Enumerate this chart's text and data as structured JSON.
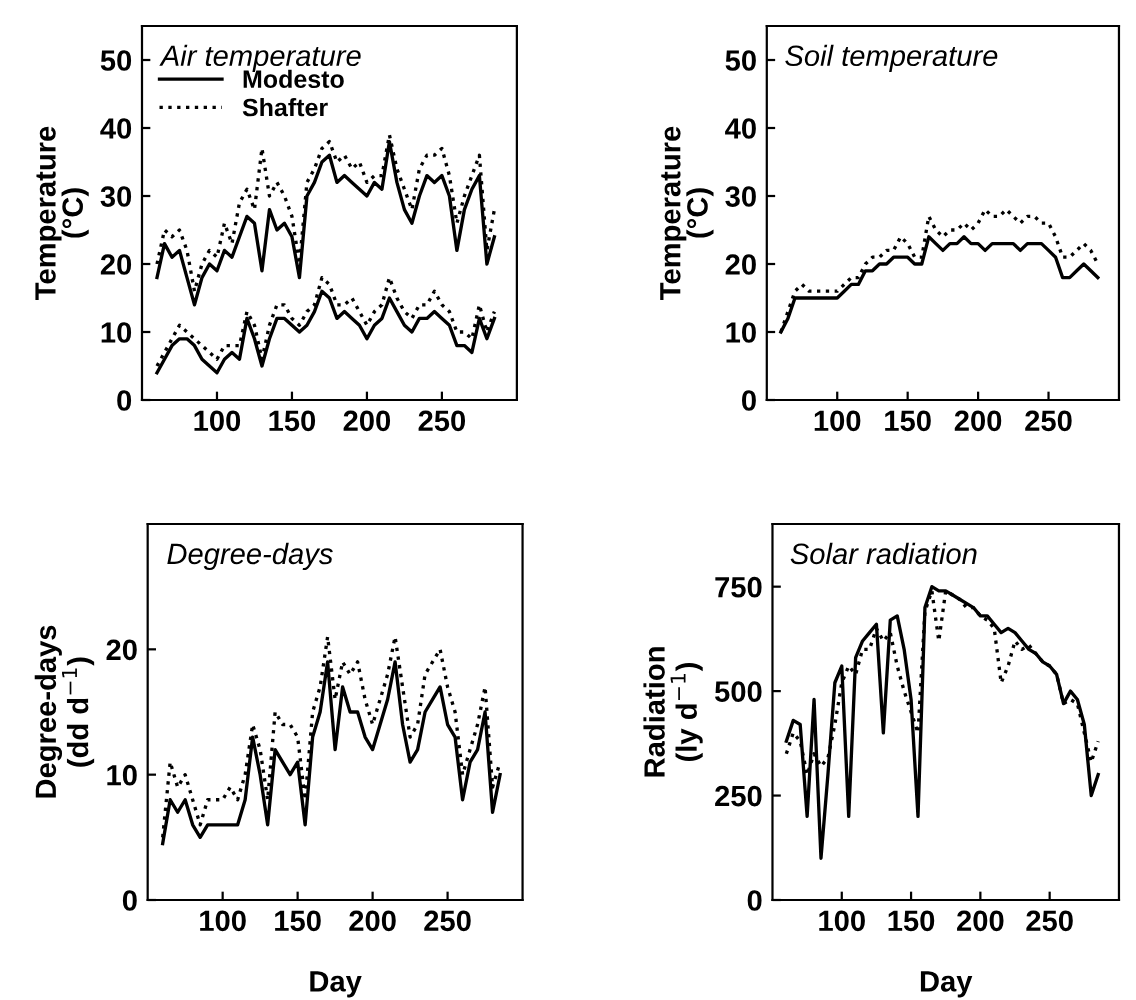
{
  "chart_data": [
    {
      "type": "line",
      "title": "Air temperature",
      "ylabel": "Temperature\n(°C)",
      "xlim": [
        50,
        300
      ],
      "xticks": [
        100,
        150,
        200,
        250
      ],
      "ylim": [
        0,
        55
      ],
      "yticks": [
        0,
        10,
        20,
        30,
        40,
        50
      ],
      "legend": "top left",
      "grid": false,
      "x": [
        60,
        65,
        70,
        75,
        80,
        85,
        90,
        95,
        100,
        105,
        110,
        115,
        120,
        125,
        130,
        135,
        140,
        145,
        150,
        155,
        160,
        165,
        170,
        175,
        180,
        185,
        190,
        195,
        200,
        205,
        210,
        215,
        220,
        225,
        230,
        235,
        240,
        245,
        250,
        255,
        260,
        265,
        270,
        275,
        280,
        285
      ],
      "series": [
        {
          "name": "Modesto",
          "color": "#000000",
          "line_style": "solid",
          "values": [
            18,
            23,
            21,
            22,
            18,
            14,
            18,
            20,
            19,
            22,
            21,
            24,
            27,
            26,
            19,
            28,
            25,
            26,
            24,
            18,
            30,
            32,
            35,
            36,
            32,
            33,
            32,
            31,
            30,
            32,
            31,
            38,
            32,
            28,
            26,
            30,
            33,
            32,
            33,
            30,
            22,
            28,
            31,
            33,
            20,
            24
          ]
        },
        {
          "name": "Shafter",
          "color": "#000000",
          "line_style": "dotted",
          "values": [
            20,
            25,
            24,
            25,
            22,
            16,
            20,
            22,
            21,
            26,
            23,
            29,
            31,
            28,
            37,
            30,
            32,
            30,
            27,
            20,
            32,
            34,
            37,
            38,
            35,
            36,
            34,
            35,
            32,
            33,
            33,
            39,
            34,
            31,
            28,
            34,
            36,
            36,
            37,
            33,
            26,
            30,
            33,
            36,
            22,
            28
          ]
        },
        {
          "color": "#000000",
          "line_style": "solid",
          "values": [
            4,
            6,
            8,
            9,
            9,
            8,
            6,
            5,
            4,
            6,
            7,
            6,
            12,
            9,
            5,
            9,
            12,
            12,
            11,
            10,
            11,
            13,
            16,
            15,
            12,
            13,
            12,
            11,
            9,
            11,
            12,
            15,
            13,
            11,
            10,
            12,
            12,
            13,
            12,
            11,
            8,
            8,
            7,
            12,
            9,
            12
          ]
        },
        {
          "color": "#000000",
          "line_style": "dotted",
          "values": [
            5,
            7,
            9,
            11,
            10,
            9,
            8,
            7,
            6,
            8,
            8,
            8,
            13,
            11,
            6,
            11,
            14,
            14,
            12,
            11,
            13,
            14,
            18,
            17,
            14,
            14,
            15,
            13,
            11,
            13,
            14,
            18,
            15,
            13,
            12,
            14,
            14,
            16,
            14,
            13,
            10,
            10,
            9,
            14,
            10,
            13
          ]
        }
      ]
    },
    {
      "type": "line",
      "title": "Soil temperature",
      "ylabel": "Temperature\n(°C)",
      "xlim": [
        50,
        300
      ],
      "xticks": [
        100,
        150,
        200,
        250
      ],
      "ylim": [
        0,
        55
      ],
      "yticks": [
        0,
        10,
        20,
        30,
        40,
        50
      ],
      "grid": false,
      "x": [
        60,
        65,
        70,
        75,
        80,
        85,
        90,
        95,
        100,
        105,
        110,
        115,
        120,
        125,
        130,
        135,
        140,
        145,
        150,
        155,
        160,
        165,
        170,
        175,
        180,
        185,
        190,
        195,
        200,
        205,
        210,
        215,
        220,
        225,
        230,
        235,
        240,
        245,
        250,
        255,
        260,
        265,
        270,
        275,
        280,
        285
      ],
      "series": [
        {
          "color": "#000000",
          "line_style": "solid",
          "values": [
            10,
            12,
            15,
            15,
            15,
            15,
            15,
            15,
            15,
            16,
            17,
            17,
            19,
            19,
            20,
            20,
            21,
            21,
            21,
            20,
            20,
            24,
            23,
            22,
            23,
            23,
            24,
            23,
            23,
            22,
            23,
            23,
            23,
            23,
            22,
            23,
            23,
            23,
            22,
            21,
            18,
            18,
            19,
            20,
            19,
            18
          ]
        },
        {
          "color": "#000000",
          "line_style": "dotted",
          "values": [
            10,
            13,
            16,
            17,
            16,
            16,
            16,
            16,
            16,
            17,
            18,
            18,
            20,
            21,
            21,
            22,
            22,
            24,
            23,
            21,
            21,
            27,
            25,
            24,
            25,
            25,
            26,
            25,
            26,
            28,
            27,
            27,
            28,
            27,
            26,
            27,
            27,
            26,
            26,
            24,
            21,
            21,
            22,
            23,
            22,
            20
          ]
        }
      ]
    },
    {
      "type": "line",
      "title": "Degree-days",
      "ylabel": "Degree-days\n(dd d$^{−1}$)",
      "xlabel": "Day",
      "xlim": [
        50,
        300
      ],
      "xticks": [
        100,
        150,
        200,
        250
      ],
      "ylim": [
        0,
        30
      ],
      "yticks": [
        0,
        10,
        20
      ],
      "grid": false,
      "x": [
        60,
        65,
        70,
        75,
        80,
        85,
        90,
        95,
        100,
        105,
        110,
        115,
        120,
        125,
        130,
        135,
        140,
        145,
        150,
        155,
        160,
        165,
        170,
        175,
        180,
        185,
        190,
        195,
        200,
        205,
        210,
        215,
        220,
        225,
        230,
        235,
        240,
        245,
        250,
        255,
        260,
        265,
        270,
        275,
        280,
        285
      ],
      "series": [
        {
          "color": "#000000",
          "line_style": "solid",
          "values": [
            4.5,
            8,
            7,
            8,
            6,
            5,
            6,
            6,
            6,
            6,
            6,
            8,
            13,
            10,
            6,
            12,
            11,
            10,
            11,
            6,
            13,
            15,
            19,
            12,
            17,
            15,
            15,
            13,
            12,
            14,
            16,
            19,
            14,
            11,
            12,
            15,
            16,
            17,
            14,
            13,
            8,
            11,
            12,
            15,
            7,
            10
          ]
        },
        {
          "color": "#000000",
          "line_style": "dotted",
          "values": [
            5,
            11,
            9,
            10,
            8,
            6,
            8,
            8,
            8,
            9,
            8,
            10,
            14,
            12,
            8,
            15,
            14,
            14,
            13,
            8,
            15,
            17,
            21,
            16,
            19,
            18,
            19,
            16,
            14,
            16,
            18,
            21,
            17,
            13,
            14,
            18,
            19,
            20,
            17,
            15,
            10,
            12,
            14,
            17,
            9,
            11
          ]
        }
      ]
    },
    {
      "type": "line",
      "title": "Solar radiation",
      "ylabel": "Radiation\n(ly d$^{−1}$)",
      "xlabel": "Day",
      "xlim": [
        50,
        300
      ],
      "xticks": [
        100,
        150,
        200,
        250
      ],
      "ylim": [
        0,
        900
      ],
      "yticks": [
        0,
        250,
        500,
        750
      ],
      "grid": false,
      "x": [
        60,
        65,
        70,
        75,
        80,
        85,
        90,
        95,
        100,
        105,
        110,
        115,
        120,
        125,
        130,
        135,
        140,
        145,
        150,
        155,
        160,
        165,
        170,
        175,
        180,
        185,
        190,
        195,
        200,
        205,
        210,
        215,
        220,
        225,
        230,
        235,
        240,
        245,
        250,
        255,
        260,
        265,
        270,
        275,
        280,
        285
      ],
      "series": [
        {
          "color": "#000000",
          "line_style": "solid",
          "values": [
            380,
            430,
            420,
            200,
            480,
            100,
            300,
            520,
            560,
            200,
            580,
            620,
            640,
            660,
            400,
            670,
            680,
            600,
            480,
            200,
            700,
            750,
            740,
            740,
            730,
            720,
            710,
            700,
            680,
            680,
            660,
            640,
            650,
            640,
            620,
            600,
            590,
            570,
            560,
            540,
            470,
            500,
            480,
            420,
            250,
            300
          ]
        },
        {
          "color": "#000000",
          "line_style": "dotted",
          "values": [
            350,
            400,
            380,
            300,
            350,
            320,
            340,
            420,
            520,
            560,
            540,
            600,
            600,
            650,
            620,
            640,
            560,
            500,
            450,
            400,
            690,
            740,
            620,
            740,
            730,
            720,
            700,
            700,
            680,
            670,
            650,
            520,
            560,
            620,
            600,
            610,
            590,
            570,
            560,
            540,
            470,
            480,
            470,
            400,
            330,
            380
          ]
        }
      ]
    }
  ]
}
